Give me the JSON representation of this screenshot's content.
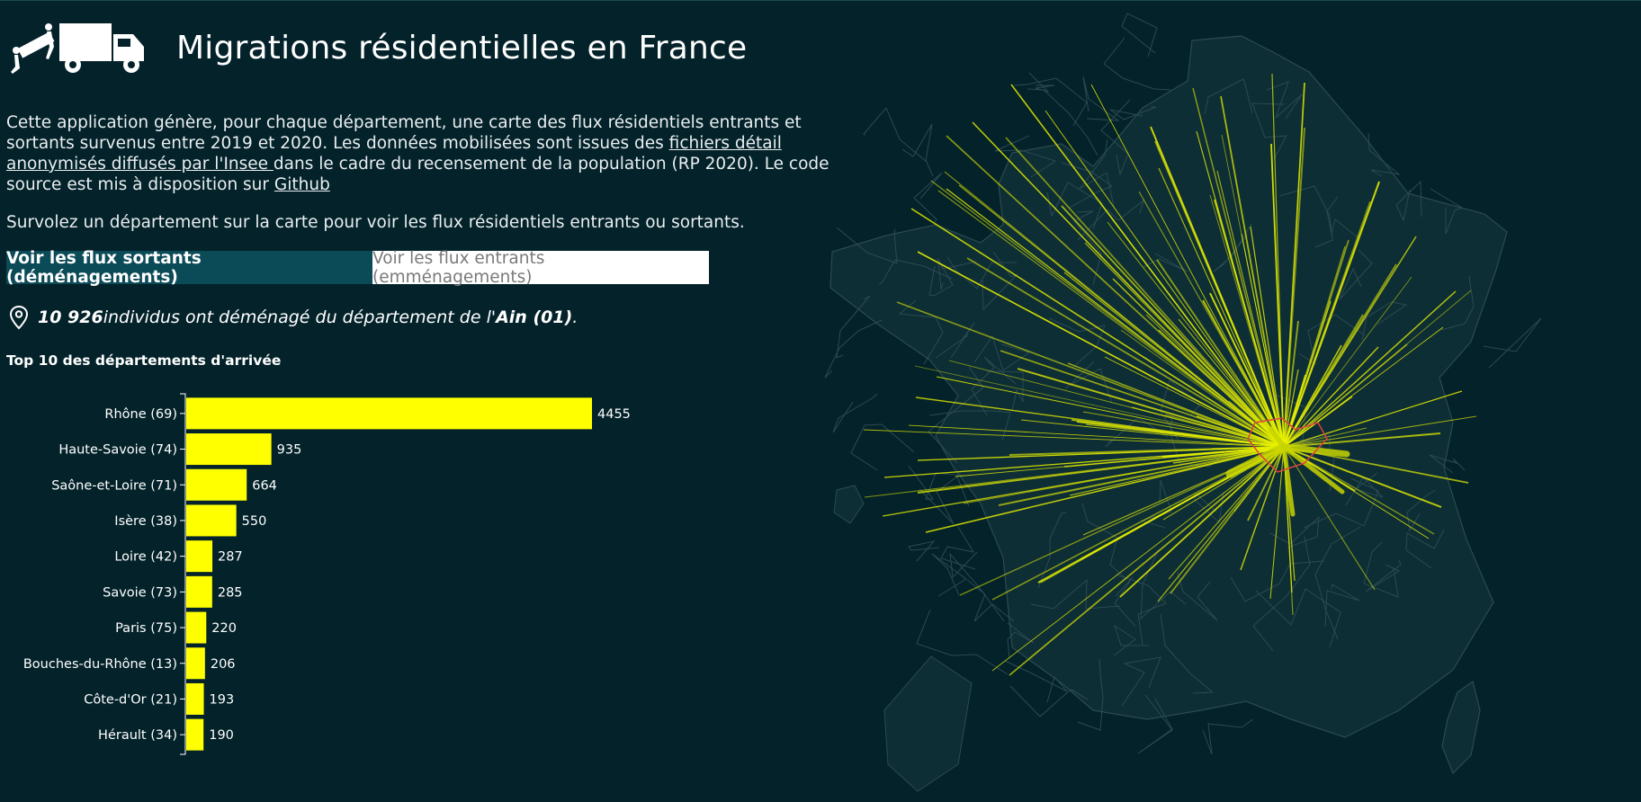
{
  "header": {
    "title": "Migrations résidentielles en France",
    "logo_icon": "moving-truck-icon"
  },
  "intro": {
    "text_before_link": "Cette application génère, pour chaque département, une carte des flux résidentiels entrants et sortants survenus entre 2019 et 2020. Les données mobilisées sont issues des ",
    "insee_link": "fichiers détail anonymisés diffusés par l'Insee ",
    "text_after_link": "dans le cadre du recensement de la population (RP 2020). Le code source est mis à disposition sur ",
    "github_link": "Github"
  },
  "hover_note": "Survolez un département sur la carte pour voir les flux résidentiels entrants ou sortants.",
  "toggle": {
    "outgoing_label": "Voir les flux sortants (déménagements)",
    "incoming_label": "Voir les flux entrants (emménagements)",
    "active": "outgoing"
  },
  "summary": {
    "count": "10 926",
    "text_middle": " individus ont déménagé du département de l'",
    "department": "Ain (01)",
    "text_end": " .",
    "icon": "map-pin-icon"
  },
  "chart_title": "Top 10 des départements d'arrivée",
  "chart_data": {
    "type": "bar",
    "orientation": "horizontal",
    "categories": [
      "Rhône (69)",
      "Haute-Savoie (74)",
      "Saône-et-Loire (71)",
      "Isère (38)",
      "Loire (42)",
      "Savoie (73)",
      "Paris (75)",
      "Bouches-du-Rhône (13)",
      "Côte-d'Or (21)",
      "Hérault (34)"
    ],
    "values": [
      4455,
      935,
      664,
      550,
      287,
      285,
      220,
      206,
      193,
      190
    ],
    "xlim": [
      0,
      4455
    ],
    "grid": false
  },
  "map": {
    "selected_department": "Ain (01)",
    "colors": {
      "background": "#03222a",
      "land": "#0d2e35",
      "borders": "#2c4a51",
      "flow": "#e8f000",
      "selected_border": "#e0423c"
    }
  },
  "colors": {
    "bar": "#ffff00",
    "active_button": "#0b4a57",
    "page_bg": "#03222a"
  }
}
